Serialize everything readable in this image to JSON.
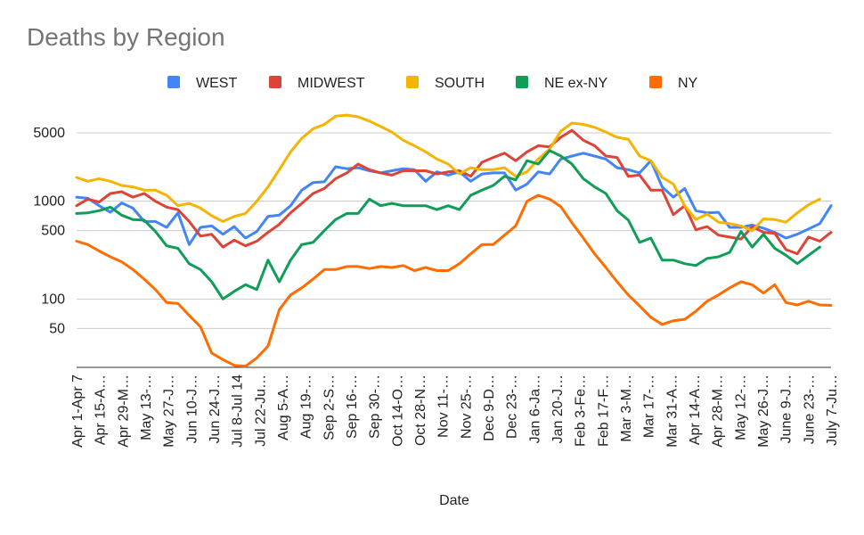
{
  "chart_data": {
    "type": "line",
    "title": "Deaths by Region",
    "xlabel": "Date",
    "ylabel": "",
    "y_scale": "log",
    "ylim": [
      20,
      10000
    ],
    "y_ticks": [
      50,
      100,
      500,
      1000,
      5000
    ],
    "grid": true,
    "legend_position": "top",
    "x_tick_labels": [
      "Apr 1-Apr 7",
      "Apr 15-A…",
      "Apr 29-M…",
      "May 13-…",
      "May 27-J…",
      "Jun 10-J…",
      "Jun 24-J…",
      "Jul 8-Jul 14",
      "Jul 22-Ju…",
      "Aug 5-A…",
      "Aug 19-…",
      "Sep 2-S…",
      "Sep 16-…",
      "Sep 30-…",
      "Oct 14-O…",
      "Oct 28-N…",
      "Nov 11-…",
      "Nov 25-…",
      "Dec 9-D…",
      "Dec 23-…",
      "Jan 6-Ja…",
      "Jan 20-J…",
      "Feb 3-Fe…",
      "Feb 17-F…",
      "Mar 3-M…",
      "Mar 17-…",
      "Mar 31-A…",
      "Apr 14-A…",
      "Apr 28-M…",
      "May 12-…",
      "May 26-J…",
      "June 9-J…",
      "June 23-…",
      "July 7-Ju…"
    ],
    "series": [
      {
        "name": "WEST",
        "color": "#4285F4",
        "values": [
          1100,
          1070,
          900,
          770,
          960,
          850,
          620,
          620,
          540,
          760,
          360,
          540,
          560,
          460,
          550,
          420,
          490,
          700,
          720,
          900,
          1300,
          1550,
          1580,
          2250,
          2150,
          2200,
          2050,
          1950,
          2050,
          2150,
          2100,
          1600,
          2000,
          1850,
          2000,
          1600,
          1900,
          1950,
          1950,
          1300,
          1500,
          2000,
          1900,
          2700,
          2900,
          3100,
          2900,
          2700,
          2200,
          2100,
          1950,
          2600,
          1400,
          1100,
          1350,
          800,
          760,
          770,
          540,
          540,
          570,
          530,
          480,
          420,
          460,
          520,
          590,
          900
        ]
      },
      {
        "name": "MIDWEST",
        "color": "#DB4437",
        "values": [
          900,
          1050,
          980,
          1200,
          1250,
          1100,
          1200,
          1000,
          870,
          820,
          620,
          440,
          460,
          340,
          400,
          350,
          390,
          480,
          580,
          760,
          950,
          1200,
          1350,
          1700,
          1950,
          2400,
          2100,
          1950,
          1850,
          2050,
          2050,
          2050,
          1900,
          2000,
          2050,
          1800,
          2500,
          2800,
          3100,
          2600,
          3200,
          3700,
          3600,
          4500,
          5300,
          4200,
          3700,
          2900,
          2800,
          1800,
          1850,
          1300,
          1300,
          730,
          900,
          510,
          550,
          450,
          430,
          410,
          550,
          480,
          470,
          320,
          290,
          430,
          390,
          480
        ]
      },
      {
        "name": "SOUTH",
        "color": "#F4B400",
        "values": [
          1750,
          1600,
          1700,
          1600,
          1450,
          1400,
          1300,
          1300,
          1150,
          900,
          950,
          850,
          710,
          620,
          700,
          750,
          1000,
          1400,
          2100,
          3200,
          4400,
          5500,
          6100,
          7400,
          7600,
          7300,
          6600,
          5800,
          5100,
          4200,
          3700,
          3200,
          2700,
          2400,
          1900,
          2200,
          2100,
          2100,
          2200,
          1800,
          2000,
          2700,
          3400,
          5200,
          6300,
          6100,
          5700,
          5100,
          4500,
          4300,
          2900,
          2600,
          1750,
          1500,
          900,
          650,
          740,
          610,
          590,
          560,
          500,
          660,
          650,
          610,
          760,
          920,
          1050
        ]
      },
      {
        "name": "NE ex-NY",
        "color": "#0F9D58",
        "values": [
          750,
          760,
          800,
          870,
          720,
          650,
          640,
          490,
          350,
          330,
          230,
          200,
          150,
          100,
          120,
          140,
          125,
          250,
          150,
          250,
          360,
          380,
          500,
          650,
          750,
          750,
          1050,
          900,
          950,
          900,
          900,
          900,
          820,
          900,
          820,
          1150,
          1300,
          1450,
          1800,
          1650,
          2600,
          2400,
          3300,
          2900,
          2400,
          1700,
          1400,
          1200,
          800,
          640,
          380,
          420,
          250,
          250,
          230,
          220,
          260,
          270,
          300,
          490,
          340,
          460,
          330,
          280,
          230,
          280,
          340
        ]
      },
      {
        "name": "NY",
        "color": "#FF6D01",
        "values": [
          390,
          360,
          310,
          270,
          240,
          200,
          160,
          125,
          92,
          90,
          68,
          52,
          28,
          24,
          21,
          20.5,
          25,
          33,
          78,
          110,
          130,
          160,
          200,
          200,
          215,
          215,
          205,
          215,
          210,
          220,
          195,
          210,
          195,
          195,
          230,
          290,
          360,
          360,
          450,
          560,
          1000,
          1150,
          1050,
          880,
          600,
          420,
          290,
          210,
          150,
          110,
          85,
          65,
          55,
          60,
          62,
          75,
          95,
          110,
          130,
          150,
          140,
          115,
          140,
          92,
          87,
          95,
          87,
          86
        ]
      }
    ]
  }
}
